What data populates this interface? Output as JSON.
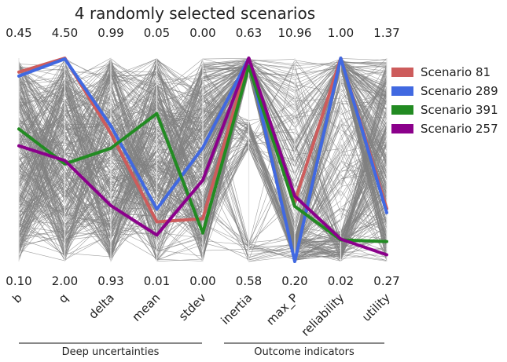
{
  "chart_data": {
    "type": "parallel_coordinates",
    "title": "4 randomly selected scenarios",
    "axes": [
      {
        "name": "b",
        "max": "0.45",
        "min": "0.10",
        "max_value": 0.45,
        "min_value": 0.1
      },
      {
        "name": "q",
        "max": "4.50",
        "min": "2.00",
        "max_value": 4.5,
        "min_value": 2.0
      },
      {
        "name": "delta",
        "max": "0.99",
        "min": "0.93",
        "max_value": 0.99,
        "min_value": 0.93
      },
      {
        "name": "mean",
        "max": "0.05",
        "min": "0.01",
        "max_value": 0.05,
        "min_value": 0.01
      },
      {
        "name": "stdev",
        "max": "0.00",
        "min": "0.00",
        "max_value": 0.001,
        "min_value": 0.0
      },
      {
        "name": "inertia",
        "max": "0.63",
        "min": "0.58",
        "max_value": 0.63,
        "min_value": 0.58
      },
      {
        "name": "max_P",
        "max": "10.96",
        "min": "0.20",
        "max_value": 10.96,
        "min_value": 0.2
      },
      {
        "name": "reliability",
        "max": "1.00",
        "min": "0.02",
        "max_value": 1.0,
        "min_value": 0.02
      },
      {
        "name": "utility",
        "max": "1.37",
        "min": "0.27",
        "max_value": 1.37,
        "min_value": 0.27
      }
    ],
    "groups": [
      {
        "label": "Deep uncertainties",
        "axes": [
          "b",
          "q",
          "delta",
          "mean",
          "stdev"
        ]
      },
      {
        "label": "Outcome indicators",
        "axes": [
          "inertia",
          "max_P",
          "reliability",
          "utility"
        ]
      }
    ],
    "highlighted": [
      {
        "name": "Scenario 81",
        "color": "#cd5c5c",
        "values": [
          0.426,
          4.5,
          0.9678,
          0.0178,
          0.00021,
          0.63,
          3.37,
          1.0,
          0.556
        ]
      },
      {
        "name": "Scenario 289",
        "color": "#4169e1",
        "values": [
          0.419,
          4.49,
          0.97,
          0.0203,
          0.00056,
          0.63,
          0.2,
          1.0,
          0.534
        ]
      },
      {
        "name": "Scenario 391",
        "color": "#228b22",
        "values": [
          0.328,
          3.2,
          0.9634,
          0.0391,
          0.00014,
          0.628,
          3.12,
          0.124,
          0.378
        ]
      },
      {
        "name": "Scenario 257",
        "color": "#8b008b",
        "values": [
          0.299,
          3.24,
          0.9465,
          0.0152,
          0.0004,
          0.63,
          3.66,
          0.128,
          0.306
        ]
      }
    ],
    "background_scenarios": "1000 gray scenario lines (values not individually readable)",
    "background_color": "#808080",
    "legend_position": "right",
    "grid": false
  }
}
